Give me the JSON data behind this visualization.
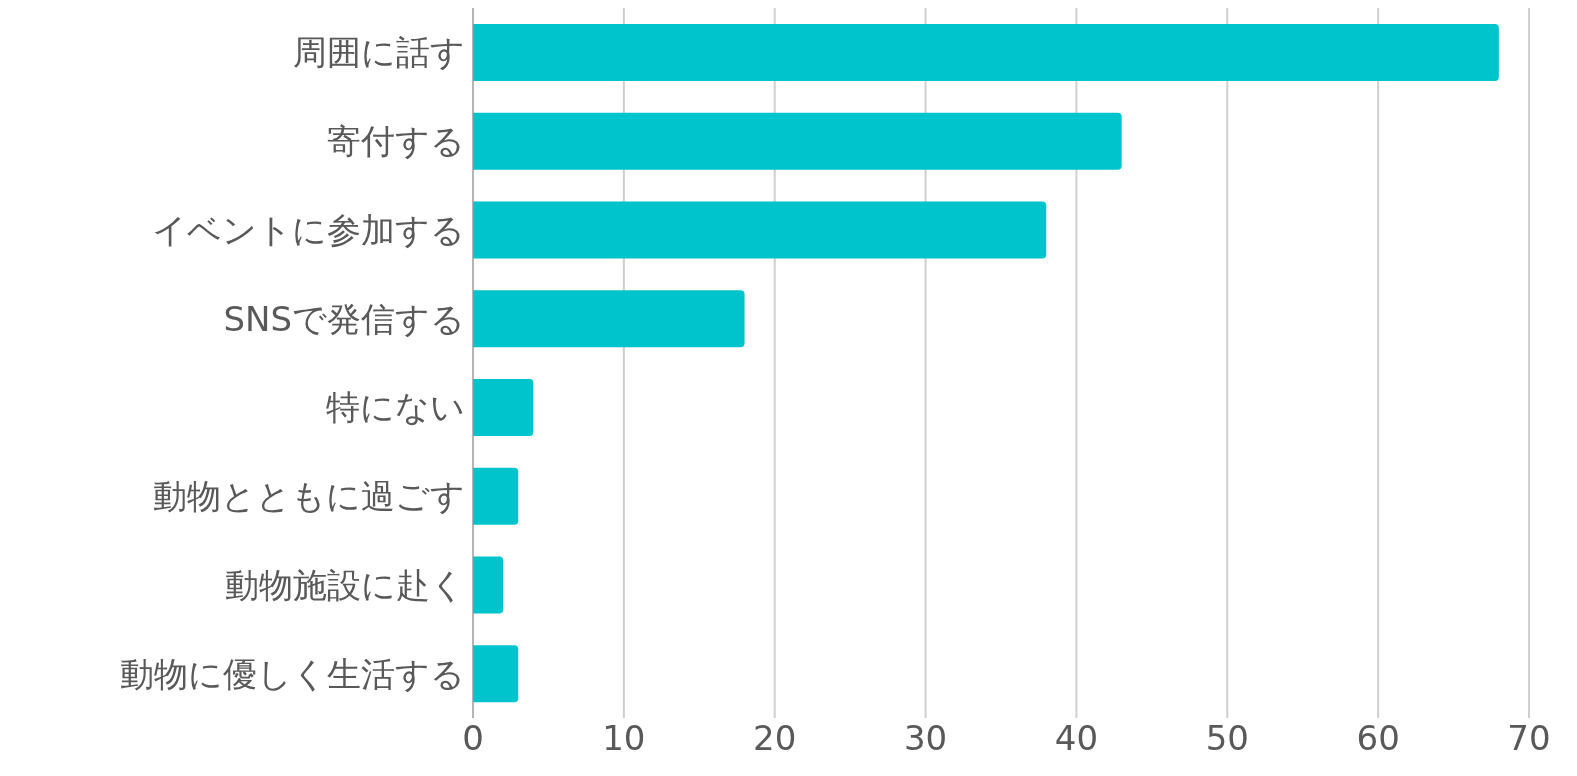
{
  "chart_data": {
    "type": "bar",
    "orientation": "horizontal",
    "categories": [
      "周囲に話す",
      "寄付する",
      "イベントに参加する",
      "SNSで発信する",
      "特にない",
      "動物とともに過ごす",
      "動物施設に赴く",
      "動物に優しく生活する"
    ],
    "values": [
      68,
      43,
      38,
      18,
      4,
      3,
      2,
      3
    ],
    "color": "#00c4cc",
    "xlim": [
      0,
      70
    ],
    "xticks": [
      0,
      10,
      20,
      30,
      40,
      50,
      60,
      70
    ],
    "grid": "x"
  }
}
